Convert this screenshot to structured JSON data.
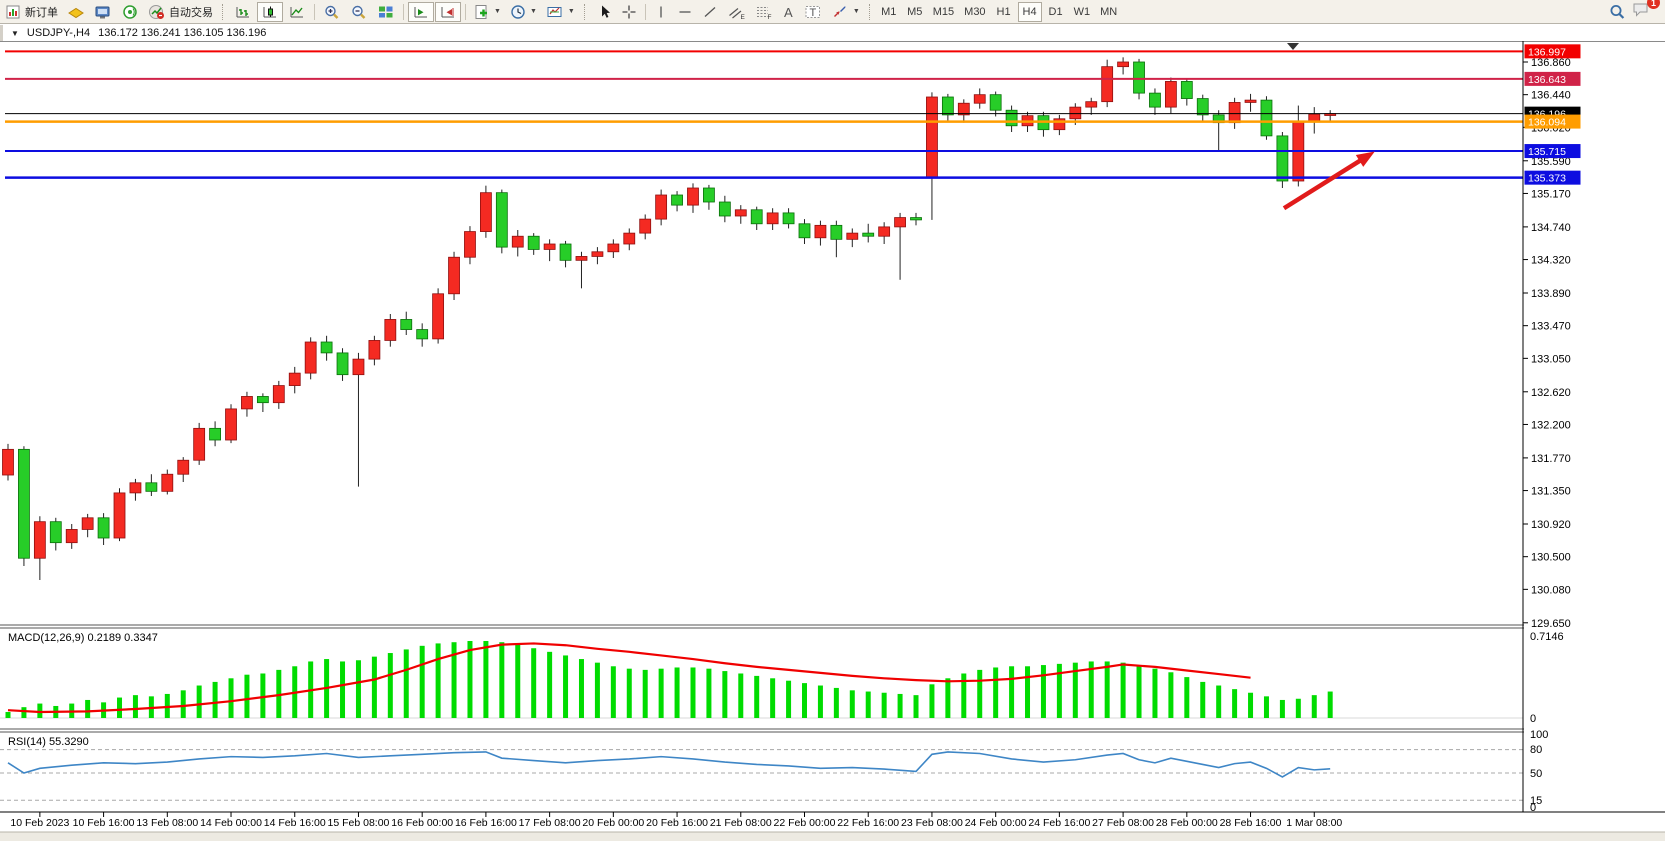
{
  "toolbar": {
    "new_order_label": "新订单",
    "auto_trading_label": "自动交易",
    "timeframes": [
      "M1",
      "M5",
      "M15",
      "M30",
      "H1",
      "H4",
      "D1",
      "W1",
      "MN"
    ],
    "active_timeframe": "H4",
    "notification_badge": "1",
    "icon_names": [
      "new-order",
      "mail",
      "market-watch",
      "signals",
      "auto-trading",
      "bar-chart",
      "candlestick-chart",
      "line-chart",
      "zoom-in",
      "zoom-out",
      "tile-windows",
      "auto-scroll",
      "chart-shift",
      "add-indicator",
      "periods",
      "templates",
      "cursor",
      "crosshair",
      "vertical-line",
      "horizontal-line",
      "trendline",
      "equidistant-channel",
      "fibonacci-retracement",
      "text",
      "text-label",
      "arrow-objects",
      "search",
      "notifications"
    ]
  },
  "chart_header": {
    "collapse_icon": "▼",
    "symbol_period": "USDJPY-,H4",
    "ohlc_text": "136.172 136.241 136.105 136.196"
  },
  "chart_data": [
    {
      "id": "price",
      "type": "candlestick",
      "symbol": "USDJPY-",
      "timeframe": "H4",
      "current_bar": {
        "open": 136.172,
        "high": 136.241,
        "low": 136.105,
        "close": 136.196
      },
      "colors": {
        "bull": "#f42a22",
        "bear": "#27cd28",
        "wick": "#222222"
      },
      "levels": [
        {
          "price": 136.997,
          "color": "#f20000",
          "label": "136.997"
        },
        {
          "price": 136.643,
          "color": "#d02348",
          "label": "136.643"
        },
        {
          "price": 136.094,
          "color": "#ff9d00",
          "label": "136.094"
        },
        {
          "price": 135.715,
          "color": "#0d0de0",
          "label": "135.715"
        },
        {
          "price": 135.373,
          "color": "#0d0de0",
          "label": "135.373"
        }
      ],
      "current_price": {
        "price": 136.196,
        "label": "136.196",
        "label_bg": "#000000",
        "line_color": "#000000"
      },
      "y_ticks": [
        "136.860",
        "136.440",
        "136.020",
        "135.590",
        "135.170",
        "134.740",
        "134.320",
        "133.890",
        "133.470",
        "133.050",
        "132.620",
        "132.200",
        "131.770",
        "131.350",
        "130.920",
        "130.500",
        "130.080",
        "129.650"
      ],
      "x_labels": [
        "10 Feb 2023",
        "10 Feb 16:00",
        "13 Feb 08:00",
        "14 Feb 00:00",
        "14 Feb 16:00",
        "15 Feb 08:00",
        "16 Feb 00:00",
        "16 Feb 16:00",
        "17 Feb 08:00",
        "20 Feb 00:00",
        "20 Feb 16:00",
        "21 Feb 08:00",
        "22 Feb 00:00",
        "22 Feb 16:00",
        "23 Feb 08:00",
        "24 Feb 00:00",
        "24 Feb 16:00",
        "27 Feb 08:00",
        "28 Feb 00:00",
        "28 Feb 16:00",
        "1 Mar 08:00"
      ],
      "candles": [
        [
          131.55,
          131.95,
          131.48,
          131.88
        ],
        [
          131.88,
          131.92,
          130.38,
          130.48
        ],
        [
          130.48,
          131.02,
          130.2,
          130.95
        ],
        [
          130.95,
          131.0,
          130.58,
          130.68
        ],
        [
          130.68,
          130.92,
          130.6,
          130.85
        ],
        [
          130.85,
          131.05,
          130.75,
          131.0
        ],
        [
          131.0,
          131.06,
          130.65,
          130.74
        ],
        [
          130.74,
          131.38,
          130.7,
          131.32
        ],
        [
          131.32,
          131.5,
          131.22,
          131.45
        ],
        [
          131.45,
          131.56,
          131.28,
          131.34
        ],
        [
          131.34,
          131.62,
          131.3,
          131.56
        ],
        [
          131.56,
          131.78,
          131.46,
          131.74
        ],
        [
          131.74,
          132.22,
          131.68,
          132.15
        ],
        [
          132.15,
          132.24,
          131.92,
          132.0
        ],
        [
          132.0,
          132.46,
          131.96,
          132.4
        ],
        [
          132.4,
          132.62,
          132.3,
          132.56
        ],
        [
          132.56,
          132.6,
          132.36,
          132.48
        ],
        [
          132.48,
          132.76,
          132.4,
          132.7
        ],
        [
          132.7,
          132.94,
          132.6,
          132.86
        ],
        [
          132.86,
          133.32,
          132.78,
          133.26
        ],
        [
          133.26,
          133.34,
          133.02,
          133.12
        ],
        [
          133.12,
          133.18,
          132.76,
          132.84
        ],
        [
          132.84,
          133.12,
          131.4,
          133.04
        ],
        [
          133.04,
          133.34,
          132.96,
          133.28
        ],
        [
          133.28,
          133.62,
          133.2,
          133.55
        ],
        [
          133.55,
          133.65,
          133.35,
          133.42
        ],
        [
          133.42,
          133.5,
          133.2,
          133.3
        ],
        [
          133.3,
          133.95,
          133.24,
          133.88
        ],
        [
          133.88,
          134.42,
          133.8,
          134.35
        ],
        [
          134.35,
          134.75,
          134.26,
          134.68
        ],
        [
          134.68,
          135.27,
          134.6,
          135.18
        ],
        [
          135.18,
          135.22,
          134.4,
          134.48
        ],
        [
          134.48,
          134.7,
          134.36,
          134.62
        ],
        [
          134.62,
          134.66,
          134.38,
          134.45
        ],
        [
          134.45,
          134.58,
          134.3,
          134.52
        ],
        [
          134.52,
          134.56,
          134.22,
          134.31
        ],
        [
          134.31,
          134.42,
          133.95,
          134.36
        ],
        [
          134.36,
          134.48,
          134.26,
          134.42
        ],
        [
          134.42,
          134.58,
          134.34,
          134.52
        ],
        [
          134.52,
          134.72,
          134.44,
          134.66
        ],
        [
          134.66,
          134.9,
          134.58,
          134.84
        ],
        [
          134.84,
          135.22,
          134.76,
          135.15
        ],
        [
          135.15,
          135.2,
          134.94,
          135.02
        ],
        [
          135.02,
          135.3,
          134.92,
          135.24
        ],
        [
          135.24,
          135.28,
          134.96,
          135.06
        ],
        [
          135.06,
          135.14,
          134.8,
          134.88
        ],
        [
          134.88,
          135.02,
          134.78,
          134.96
        ],
        [
          134.96,
          135.0,
          134.7,
          134.78
        ],
        [
          134.78,
          134.98,
          134.7,
          134.92
        ],
        [
          134.92,
          134.98,
          134.72,
          134.78
        ],
        [
          134.78,
          134.84,
          134.52,
          134.6
        ],
        [
          134.6,
          134.82,
          134.5,
          134.76
        ],
        [
          134.76,
          134.82,
          134.35,
          134.58
        ],
        [
          134.58,
          134.72,
          134.48,
          134.66
        ],
        [
          134.66,
          134.78,
          134.54,
          134.62
        ],
        [
          134.62,
          134.8,
          134.52,
          134.74
        ],
        [
          134.74,
          134.92,
          134.06,
          134.86
        ],
        [
          134.86,
          134.92,
          134.76,
          134.83
        ],
        [
          135.37,
          136.47,
          134.83,
          136.41
        ],
        [
          136.41,
          136.45,
          136.1,
          136.18
        ],
        [
          136.18,
          136.38,
          136.08,
          136.33
        ],
        [
          136.33,
          136.52,
          136.26,
          136.44
        ],
        [
          136.44,
          136.48,
          136.16,
          136.24
        ],
        [
          136.24,
          136.3,
          135.96,
          136.04
        ],
        [
          136.04,
          136.22,
          135.96,
          136.17
        ],
        [
          136.17,
          136.22,
          135.9,
          135.99
        ],
        [
          135.99,
          136.18,
          135.92,
          136.13
        ],
        [
          136.13,
          136.33,
          136.05,
          136.28
        ],
        [
          136.28,
          136.4,
          136.18,
          136.35
        ],
        [
          136.35,
          136.89,
          136.28,
          136.8
        ],
        [
          136.8,
          136.92,
          136.7,
          136.86
        ],
        [
          136.86,
          136.9,
          136.38,
          136.46
        ],
        [
          136.46,
          136.52,
          136.18,
          136.28
        ],
        [
          136.28,
          136.66,
          136.2,
          136.61
        ],
        [
          136.61,
          136.65,
          136.3,
          136.39
        ],
        [
          136.39,
          136.44,
          136.1,
          136.18
        ],
        [
          136.18,
          136.24,
          135.72,
          136.08
        ],
        [
          136.08,
          136.4,
          136.0,
          136.34
        ],
        [
          136.34,
          136.45,
          136.22,
          136.37
        ],
        [
          136.37,
          136.42,
          135.86,
          135.91
        ],
        [
          135.91,
          135.96,
          135.24,
          135.33
        ],
        [
          135.33,
          136.3,
          135.26,
          136.09
        ],
        [
          136.09,
          136.28,
          135.94,
          136.19
        ],
        [
          136.172,
          136.241,
          136.105,
          136.196
        ]
      ],
      "annotation_arrow": {
        "color": "#e11b1b",
        "from_bar": 80.1,
        "from_price": 134.98,
        "to_bar": 85.8,
        "to_price": 135.71
      }
    },
    {
      "id": "macd",
      "type": "histogram+line",
      "label": "MACD(12,26,9) 0.2189 0.3347",
      "macd_value": 0.2189,
      "signal_value": 0.3347,
      "y_max": 0.7146,
      "axis_labels": [
        "0.7146",
        "0"
      ],
      "histogram_color": "#00dc00",
      "signal_color": "#f00000",
      "histogram": [
        0.05,
        0.09,
        0.12,
        0.1,
        0.12,
        0.15,
        0.13,
        0.17,
        0.19,
        0.18,
        0.2,
        0.23,
        0.27,
        0.3,
        0.33,
        0.36,
        0.37,
        0.4,
        0.43,
        0.47,
        0.49,
        0.47,
        0.48,
        0.51,
        0.54,
        0.57,
        0.6,
        0.62,
        0.63,
        0.64,
        0.64,
        0.63,
        0.61,
        0.58,
        0.55,
        0.52,
        0.49,
        0.46,
        0.43,
        0.41,
        0.4,
        0.41,
        0.42,
        0.42,
        0.41,
        0.39,
        0.37,
        0.35,
        0.33,
        0.31,
        0.29,
        0.27,
        0.25,
        0.23,
        0.22,
        0.21,
        0.2,
        0.19,
        0.28,
        0.33,
        0.37,
        0.4,
        0.42,
        0.43,
        0.43,
        0.44,
        0.45,
        0.46,
        0.47,
        0.47,
        0.46,
        0.44,
        0.41,
        0.38,
        0.34,
        0.3,
        0.27,
        0.24,
        0.21,
        0.18,
        0.15,
        0.16,
        0.19,
        0.22
      ],
      "signal_points": [
        [
          1,
          0.065
        ],
        [
          3,
          0.05
        ],
        [
          6,
          0.055
        ],
        [
          9,
          0.075
        ],
        [
          12,
          0.1
        ],
        [
          15,
          0.14
        ],
        [
          18,
          0.19
        ],
        [
          21,
          0.25
        ],
        [
          24,
          0.32
        ],
        [
          26,
          0.4
        ],
        [
          28,
          0.49
        ],
        [
          30,
          0.565
        ],
        [
          32,
          0.61
        ],
        [
          34,
          0.62
        ],
        [
          36,
          0.605
        ],
        [
          38,
          0.575
        ],
        [
          40,
          0.55
        ],
        [
          42,
          0.52
        ],
        [
          44,
          0.49
        ],
        [
          46,
          0.455
        ],
        [
          48,
          0.425
        ],
        [
          50,
          0.4
        ],
        [
          52,
          0.375
        ],
        [
          54,
          0.35
        ],
        [
          56,
          0.33
        ],
        [
          58,
          0.315
        ],
        [
          60,
          0.305
        ],
        [
          62,
          0.31
        ],
        [
          64,
          0.325
        ],
        [
          66,
          0.355
        ],
        [
          68,
          0.39
        ],
        [
          70,
          0.425
        ],
        [
          71,
          0.445
        ],
        [
          73,
          0.425
        ],
        [
          75,
          0.395
        ],
        [
          77,
          0.365
        ],
        [
          79,
          0.335
        ]
      ]
    },
    {
      "id": "rsi",
      "type": "line",
      "label": "RSI(14) 55.3290",
      "value": 55.329,
      "range": [
        0,
        100
      ],
      "levels": [
        80,
        50,
        15
      ],
      "axis_labels": [
        "100",
        "80",
        "50",
        "15",
        "0"
      ],
      "line_color": "#3e86c6",
      "points": [
        [
          1,
          63
        ],
        [
          2,
          50
        ],
        [
          3,
          56
        ],
        [
          5,
          60
        ],
        [
          7,
          63
        ],
        [
          9,
          62
        ],
        [
          11,
          64
        ],
        [
          13,
          68
        ],
        [
          15,
          71
        ],
        [
          17,
          70
        ],
        [
          19,
          72
        ],
        [
          21,
          75
        ],
        [
          23,
          70
        ],
        [
          25,
          72
        ],
        [
          27,
          74
        ],
        [
          29,
          76
        ],
        [
          31,
          77
        ],
        [
          32,
          69
        ],
        [
          34,
          66
        ],
        [
          36,
          63
        ],
        [
          38,
          66
        ],
        [
          40,
          68
        ],
        [
          42,
          71
        ],
        [
          44,
          68
        ],
        [
          46,
          64
        ],
        [
          48,
          61
        ],
        [
          50,
          59
        ],
        [
          52,
          56
        ],
        [
          54,
          57
        ],
        [
          56,
          55
        ],
        [
          58,
          52
        ],
        [
          59,
          74
        ],
        [
          60,
          77
        ],
        [
          62,
          75
        ],
        [
          64,
          68
        ],
        [
          66,
          64
        ],
        [
          68,
          67
        ],
        [
          70,
          73
        ],
        [
          71,
          75
        ],
        [
          72,
          67
        ],
        [
          73,
          63
        ],
        [
          74,
          69
        ],
        [
          75,
          65
        ],
        [
          76,
          61
        ],
        [
          77,
          57
        ],
        [
          78,
          62
        ],
        [
          79,
          64
        ],
        [
          80,
          56
        ],
        [
          81,
          45
        ],
        [
          82,
          57
        ],
        [
          83,
          54
        ],
        [
          84,
          55.33
        ]
      ]
    }
  ]
}
